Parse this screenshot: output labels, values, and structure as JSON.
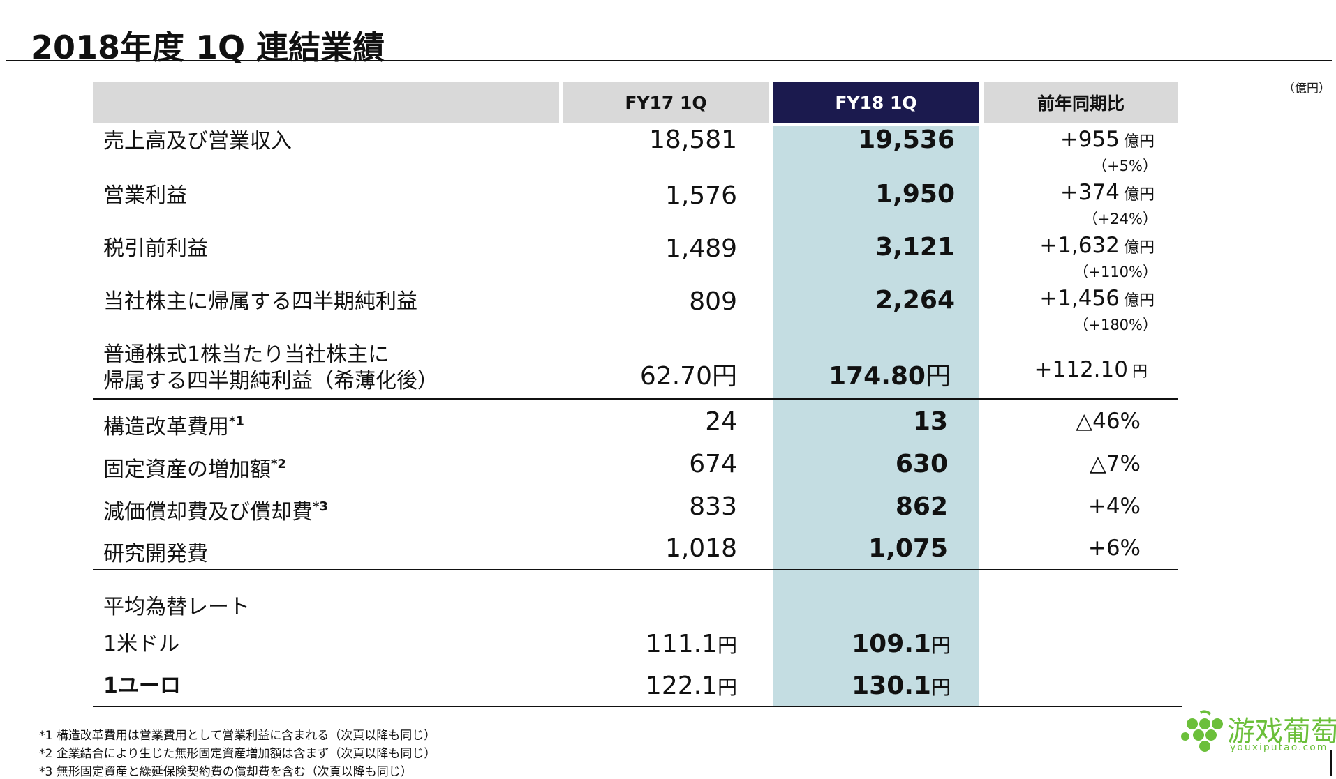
{
  "title": "2018年度 1Q 連結業績",
  "unit": "（億円）",
  "headers": {
    "fy17": "FY17 1Q",
    "fy18": "FY18 1Q",
    "yoy": "前年同期比"
  },
  "rows": [
    {
      "label": "売上高及び営業収入",
      "fy17": "18,581",
      "fy18": "19,536",
      "yoy": "+955",
      "yoy_unit": "億円",
      "yoy_pct": "（+5%）"
    },
    {
      "label": "営業利益",
      "fy17": "1,576",
      "fy18": "1,950",
      "yoy": "+374",
      "yoy_unit": "億円",
      "yoy_pct": "（+24%）"
    },
    {
      "label": "税引前利益",
      "fy17": "1,489",
      "fy18": "3,121",
      "yoy": "+1,632",
      "yoy_unit": "億円",
      "yoy_pct": "（+110%）"
    },
    {
      "label": "当社株主に帰属する四半期純利益",
      "fy17": "809",
      "fy18": "2,264",
      "yoy": "+1,456",
      "yoy_unit": "億円",
      "yoy_pct": "（+180%）"
    }
  ],
  "eps": {
    "label_line1": "普通株式1株当たり当社株主に",
    "label_line2": "帰属する四半期純利益（希薄化後）",
    "fy17": "62.70",
    "fy17_unit": "円",
    "fy18": "174.80",
    "fy18_unit": "円",
    "yoy": "+112.10",
    "yoy_unit": "円"
  },
  "rows2": [
    {
      "label": "構造改革費用",
      "mark": "*1",
      "fy17": "24",
      "fy18": "13",
      "yoy": "△46%"
    },
    {
      "label": "固定資産の増加額",
      "mark": "*2",
      "fy17": "674",
      "fy18": "630",
      "yoy": "△7%"
    },
    {
      "label": "減価償却費及び償却費",
      "mark": "*3",
      "fy17": "833",
      "fy18": "862",
      "yoy": "+4%"
    },
    {
      "label": "研究開発費",
      "mark": "",
      "fy17": "1,018",
      "fy18": "1,075",
      "yoy": "+6%"
    }
  ],
  "fx": {
    "section_label": "平均為替レート",
    "usd": {
      "label": "1米ドル",
      "fy17": "111.1",
      "fy18": "109.1",
      "unit": "円"
    },
    "eur": {
      "label": "1ユーロ",
      "fy17": "122.1",
      "fy18": "130.1",
      "unit": "円"
    }
  },
  "notes": [
    "*1 構造改革費用は営業費用として営業利益に含まれる（次頁以降も同じ）",
    "*2 企業結合により生じた無形固定資産増加額は含まず（次頁以降も同じ）",
    "*3 無形固定資産と繰延保険契約費の償却費を含む（次頁以降も同じ）"
  ],
  "watermark": {
    "cn": "游戏葡萄",
    "en": "youxiputao.com",
    "color": "#6bbf3a"
  },
  "colors": {
    "header_grey": "#d9d9d9",
    "header_dark": "#1b1a4e",
    "highlight": "#c4dde2"
  }
}
